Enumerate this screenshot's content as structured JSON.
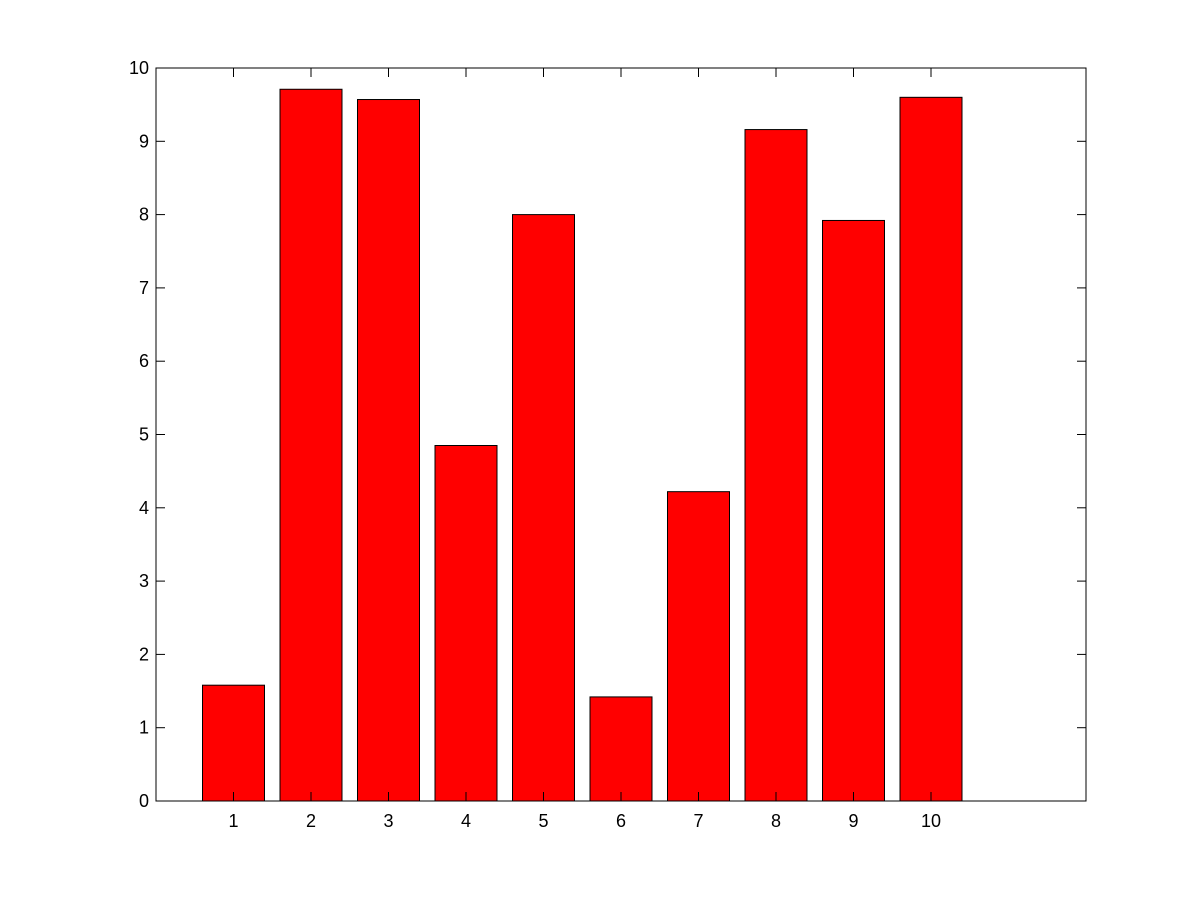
{
  "chart_data": {
    "type": "bar",
    "categories": [
      "1",
      "2",
      "3",
      "4",
      "5",
      "6",
      "7",
      "8",
      "9",
      "10"
    ],
    "values": [
      1.58,
      9.71,
      9.57,
      4.85,
      8.0,
      1.42,
      4.22,
      9.16,
      7.92,
      9.6
    ],
    "x_range": [
      0,
      12
    ],
    "ylim": [
      0,
      10
    ],
    "y_ticks": [
      "0",
      "1",
      "2",
      "3",
      "4",
      "5",
      "6",
      "7",
      "8",
      "9",
      "10"
    ],
    "grid": false,
    "legend": "none",
    "bar_color": "#ff0000",
    "edge_color": "#000000"
  }
}
